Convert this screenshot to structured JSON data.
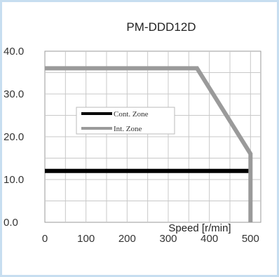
{
  "chart_data": {
    "type": "line",
    "title": "PM-DDD12D",
    "xlabel": "Speed [r/min]",
    "ylabel": "",
    "xlim": [
      0,
      525
    ],
    "ylim": [
      0,
      40
    ],
    "xticks": [
      0,
      100,
      200,
      300,
      400,
      500
    ],
    "yticks": [
      0,
      10,
      20,
      30,
      40
    ],
    "xtick_labels": [
      "0",
      "100",
      "200",
      "300",
      "400",
      "500"
    ],
    "ytick_labels": [
      "0.0",
      "10.0",
      "20.0",
      "30.0",
      "40.0"
    ],
    "grid": true,
    "legend_position": "center-left",
    "series": [
      {
        "name": "Cont. Zone",
        "color": "#000000",
        "x": [
          0,
          500
        ],
        "y": [
          12,
          12
        ]
      },
      {
        "name": "Int. Zone",
        "color": "#9a9a9a",
        "x": [
          0,
          370,
          500,
          500
        ],
        "y": [
          36,
          36,
          16,
          0
        ]
      }
    ]
  }
}
